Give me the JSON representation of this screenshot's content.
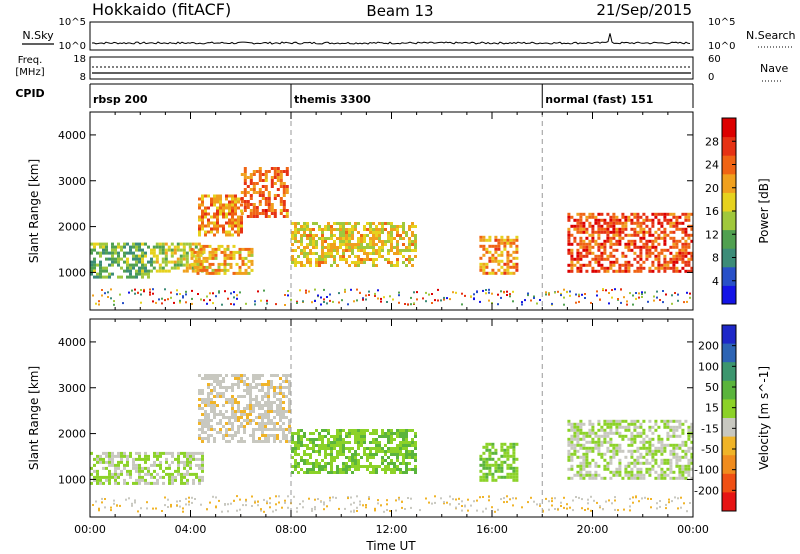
{
  "header": {
    "radar": "Hokkaido (fitACF)",
    "beam": "Beam 13",
    "date": "21/Sep/2015"
  },
  "noise_panel": {
    "left_label": "N.Sky",
    "right_label": "N.Search",
    "left_ticks": [
      "10^5",
      "10^0"
    ],
    "right_ticks": [
      "10^5",
      "10^0"
    ]
  },
  "freq_panel": {
    "left_label_line1": "Freq.",
    "left_label_line2": "[MHz]",
    "right_label": "Nave",
    "left_ticks": [
      "18",
      "8"
    ],
    "right_ticks": [
      "60",
      "0"
    ]
  },
  "cpid_panel": {
    "label": "CPID",
    "modes": [
      {
        "name": "rbsp 200",
        "start_hour": 0
      },
      {
        "name": "themis 3300",
        "start_hour": 8
      },
      {
        "name": "normal (fast) 151",
        "start_hour": 18
      }
    ]
  },
  "colors": {
    "power_scale": [
      "#1414e6",
      "#2850c8",
      "#3c8c78",
      "#50a050",
      "#a0c83c",
      "#e6d21e",
      "#f0a01e",
      "#f06414",
      "#e63214",
      "#dc0000"
    ],
    "velocity_scale": [
      "#1e28c8",
      "#2d64b4",
      "#3c966e",
      "#5ab43c",
      "#8cd228",
      "#c8c8c0",
      "#f0b428",
      "#f08c1e",
      "#f05014",
      "#e61414"
    ]
  },
  "chart_data": [
    {
      "type": "heatmap",
      "title": "Power",
      "ylabel": "Slant Range [km]",
      "xlabel": "",
      "x_range_hours": [
        0,
        24
      ],
      "ylim_km": [
        180,
        4500
      ],
      "y_ticks": [
        1000,
        2000,
        3000,
        4000
      ],
      "colorbar": {
        "label": "Power [dB]",
        "range": [
          0,
          32
        ],
        "ticks": [
          "4",
          "8",
          "12",
          "16",
          "20",
          "24",
          "28"
        ]
      },
      "echo_regions": [
        {
          "t_start": 0.0,
          "t_end": 2.5,
          "range_low": 900,
          "range_high": 1650,
          "level": 12
        },
        {
          "t_start": 2.5,
          "t_end": 4.5,
          "range_low": 1000,
          "range_high": 1650,
          "level": 16
        },
        {
          "t_start": 4.3,
          "t_end": 6.0,
          "range_low": 1800,
          "range_high": 2700,
          "level": 22
        },
        {
          "t_start": 6.0,
          "t_end": 7.9,
          "range_low": 2200,
          "range_high": 3300,
          "level": 24
        },
        {
          "t_start": 4.0,
          "t_end": 6.5,
          "range_low": 1000,
          "range_high": 1600,
          "level": 20
        },
        {
          "t_start": 8.0,
          "t_end": 13.0,
          "range_low": 1150,
          "range_high": 2100,
          "level": 18
        },
        {
          "t_start": 15.5,
          "t_end": 17.0,
          "range_low": 1000,
          "range_high": 1800,
          "level": 22
        },
        {
          "t_start": 19.0,
          "t_end": 24.0,
          "range_low": 1000,
          "range_high": 2300,
          "level": 26
        }
      ]
    },
    {
      "type": "heatmap",
      "title": "Velocity",
      "ylabel": "Slant Range [km]",
      "xlabel": "Time UT",
      "x_range_hours": [
        0,
        24
      ],
      "ylim_km": [
        180,
        4500
      ],
      "y_ticks": [
        1000,
        2000,
        3000,
        4000
      ],
      "x_ticks": [
        "00:00",
        "04:00",
        "08:00",
        "12:00",
        "16:00",
        "20:00",
        "00:00"
      ],
      "colorbar": {
        "label": "Velocity [m s^-1]",
        "range": [
          -250,
          250
        ],
        "ticks": [
          "200",
          "100",
          "50",
          "15",
          "-15",
          "-50",
          "-100",
          "-200"
        ]
      },
      "echo_regions": [
        {
          "t_start": 0.0,
          "t_end": 4.5,
          "range_low": 900,
          "range_high": 1600,
          "velocity": 0
        },
        {
          "t_start": 4.3,
          "t_end": 7.9,
          "range_low": 1800,
          "range_high": 3300,
          "velocity": -30
        },
        {
          "t_start": 8.0,
          "t_end": 13.0,
          "range_low": 1150,
          "range_high": 2100,
          "velocity": 40
        },
        {
          "t_start": 15.5,
          "t_end": 17.0,
          "range_low": 1000,
          "range_high": 1800,
          "velocity": 40
        },
        {
          "t_start": 19.0,
          "t_end": 24.0,
          "range_low": 1000,
          "range_high": 2300,
          "velocity": 0
        }
      ]
    }
  ]
}
